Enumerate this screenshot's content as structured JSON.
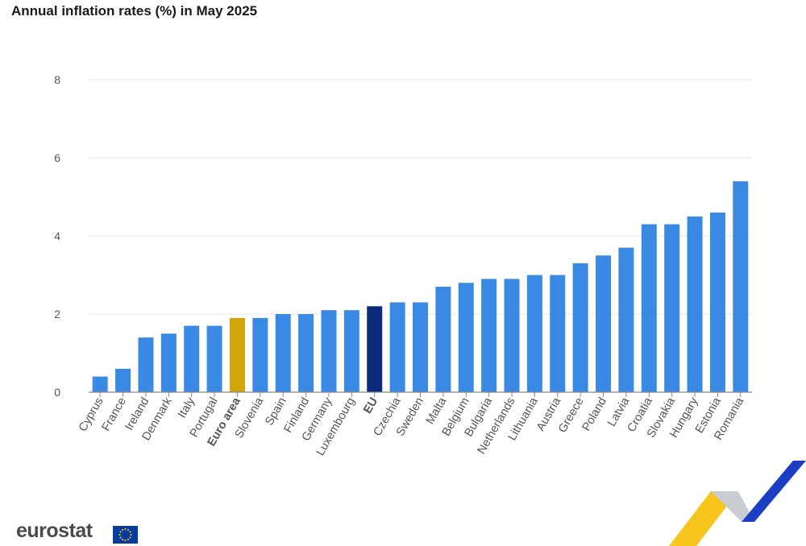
{
  "chart_data": {
    "type": "bar",
    "title": "Annual inflation rates (%) in May 2025",
    "categories": [
      "Cyprus",
      "France",
      "Ireland",
      "Denmark",
      "Italy",
      "Portugal",
      "Euro area",
      "Slovenia",
      "Spain",
      "Finland",
      "Germany",
      "Luxembourg",
      "EU",
      "Czechia",
      "Sweden",
      "Malta",
      "Belgium",
      "Bulgaria",
      "Netherlands",
      "Lithuania",
      "Austria",
      "Greece",
      "Poland",
      "Latvia",
      "Croatia",
      "Slovakia",
      "Hungary",
      "Estonia",
      "Romania"
    ],
    "values": [
      0.4,
      0.6,
      1.4,
      1.5,
      1.7,
      1.7,
      1.9,
      1.9,
      2.0,
      2.0,
      2.1,
      2.1,
      2.2,
      2.3,
      2.3,
      2.7,
      2.8,
      2.9,
      2.9,
      3.0,
      3.0,
      3.3,
      3.5,
      3.7,
      4.3,
      4.3,
      4.5,
      4.6,
      5.4
    ],
    "highlighted": {
      "Euro area": "#d4a50b",
      "EU": "#0b2a79"
    },
    "bar_color": "#3a8ae5",
    "grid_color": "#e6e6e6",
    "ylim": [
      0,
      8
    ],
    "yticks": [
      0,
      2,
      4,
      6,
      8
    ],
    "xlabel": "",
    "ylabel": "",
    "bold_categories": [
      "Euro area",
      "EU"
    ]
  },
  "branding": {
    "logo_text": "eurostat",
    "logo_icon": "eu-flag-icon",
    "decoration_icon": "eurostat-chevron-icon"
  }
}
